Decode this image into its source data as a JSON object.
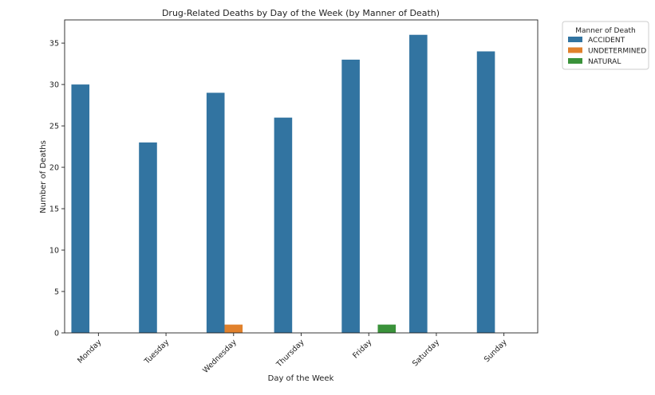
{
  "chart_data": {
    "type": "bar",
    "title": "Drug-Related Deaths by Day of the Week (by Manner of Death)",
    "xlabel": "Day of the Week",
    "ylabel": "Number of Deaths",
    "categories": [
      "Monday",
      "Tuesday",
      "Wednesday",
      "Thursday",
      "Friday",
      "Saturday",
      "Sunday"
    ],
    "series": [
      {
        "name": "ACCIDENT",
        "color": "#3274a1",
        "values": [
          30,
          23,
          29,
          26,
          33,
          36,
          34
        ]
      },
      {
        "name": "UNDETERMINED",
        "color": "#e1812c",
        "values": [
          0,
          0,
          1,
          0,
          0,
          0,
          0
        ]
      },
      {
        "name": "NATURAL",
        "color": "#3a923a",
        "values": [
          0,
          0,
          0,
          0,
          1,
          0,
          0
        ]
      }
    ],
    "ylim": [
      0,
      37.8
    ],
    "yticks": [
      0,
      5,
      10,
      15,
      20,
      25,
      30,
      35
    ],
    "grid": false,
    "legend": {
      "title": "Manner of Death",
      "placement": "outside upper right"
    }
  }
}
